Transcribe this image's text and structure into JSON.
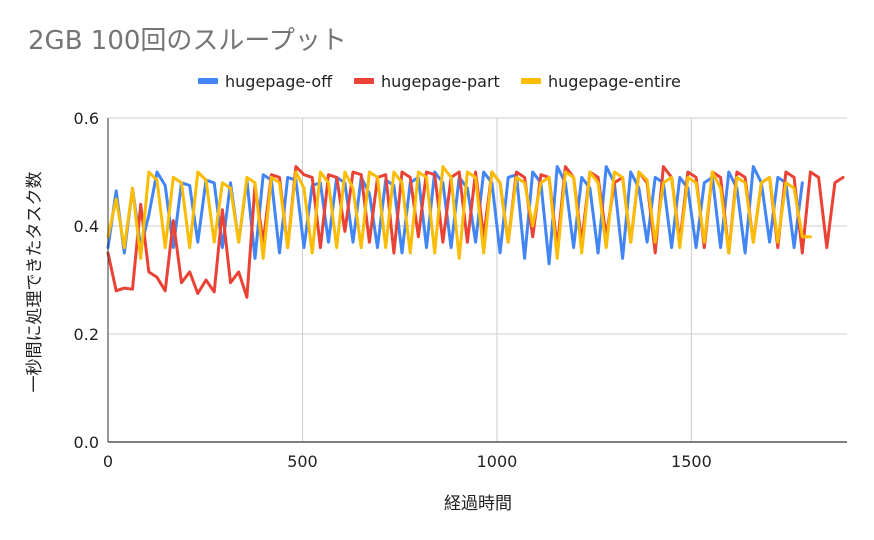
{
  "chart_data": {
    "type": "line",
    "title": "2GB 100回のスループット",
    "xlabel": "経過時間",
    "ylabel": "一秒間に処理できたタスク数",
    "xlim": [
      0,
      1900
    ],
    "ylim": [
      0,
      0.6
    ],
    "xticks": [
      "0",
      "500",
      "1000",
      "1500"
    ],
    "xtick_values": [
      0,
      500,
      1000,
      1500
    ],
    "yticks": [
      "0.0",
      "0.2",
      "0.4",
      "0.6"
    ],
    "ytick_values": [
      0,
      0.2,
      0.4,
      0.6
    ],
    "grid": true,
    "legend_position": "top",
    "series": [
      {
        "name": "hugepage-off",
        "color": "#4285f4",
        "x": [
          0,
          21,
          42,
          63,
          84,
          105,
          126,
          147,
          168,
          189,
          210,
          231,
          252,
          273,
          294,
          315,
          336,
          357,
          378,
          399,
          420,
          441,
          462,
          483,
          504,
          525,
          546,
          567,
          588,
          609,
          630,
          651,
          672,
          693,
          714,
          735,
          756,
          777,
          798,
          819,
          840,
          861,
          882,
          903,
          924,
          945,
          966,
          987,
          1008,
          1029,
          1050,
          1071,
          1092,
          1113,
          1134,
          1155,
          1176,
          1197,
          1218,
          1239,
          1260,
          1281,
          1302,
          1323,
          1344,
          1365,
          1386,
          1407,
          1428,
          1449,
          1470,
          1491,
          1512,
          1533,
          1554,
          1575,
          1596,
          1617,
          1638,
          1659,
          1680,
          1701,
          1722,
          1743,
          1764,
          1785
        ],
        "y": [
          0.36,
          0.465,
          0.35,
          0.47,
          0.36,
          0.42,
          0.5,
          0.475,
          0.36,
          0.48,
          0.475,
          0.37,
          0.485,
          0.48,
          0.36,
          0.48,
          0.37,
          0.485,
          0.34,
          0.495,
          0.485,
          0.35,
          0.49,
          0.485,
          0.36,
          0.475,
          0.48,
          0.37,
          0.49,
          0.48,
          0.37,
          0.49,
          0.46,
          0.36,
          0.485,
          0.475,
          0.35,
          0.48,
          0.49,
          0.36,
          0.5,
          0.48,
          0.36,
          0.49,
          0.47,
          0.37,
          0.5,
          0.48,
          0.35,
          0.49,
          0.495,
          0.34,
          0.5,
          0.48,
          0.33,
          0.51,
          0.48,
          0.36,
          0.49,
          0.47,
          0.35,
          0.51,
          0.48,
          0.34,
          0.5,
          0.47,
          0.37,
          0.49,
          0.48,
          0.36,
          0.49,
          0.47,
          0.36,
          0.48,
          0.49,
          0.36,
          0.5,
          0.47,
          0.35,
          0.51,
          0.48,
          0.37,
          0.49,
          0.48,
          0.36,
          0.48
        ]
      },
      {
        "name": "hugepage-part",
        "color": "#ea4335",
        "x": [
          0,
          21,
          42,
          63,
          84,
          105,
          126,
          147,
          168,
          189,
          210,
          231,
          252,
          273,
          294,
          315,
          336,
          357,
          378,
          399,
          420,
          441,
          462,
          483,
          504,
          525,
          546,
          567,
          588,
          609,
          630,
          651,
          672,
          693,
          714,
          735,
          756,
          777,
          798,
          819,
          840,
          861,
          882,
          903,
          924,
          945,
          966,
          987,
          1008,
          1029,
          1050,
          1071,
          1092,
          1113,
          1134,
          1155,
          1176,
          1197,
          1218,
          1239,
          1260,
          1281,
          1302,
          1323,
          1344,
          1365,
          1386,
          1407,
          1428,
          1449,
          1470,
          1491,
          1512,
          1533,
          1554,
          1575,
          1596,
          1617,
          1638,
          1659,
          1680,
          1701,
          1722,
          1743,
          1764,
          1785,
          1806,
          1827,
          1848,
          1869,
          1890
        ],
        "y": [
          0.35,
          0.28,
          0.285,
          0.283,
          0.44,
          0.315,
          0.305,
          0.28,
          0.41,
          0.295,
          0.315,
          0.275,
          0.3,
          0.278,
          0.43,
          0.295,
          0.315,
          0.268,
          0.475,
          0.37,
          0.495,
          0.49,
          0.36,
          0.51,
          0.495,
          0.49,
          0.36,
          0.495,
          0.49,
          0.39,
          0.5,
          0.495,
          0.37,
          0.49,
          0.495,
          0.35,
          0.5,
          0.49,
          0.38,
          0.5,
          0.495,
          0.37,
          0.49,
          0.5,
          0.37,
          0.5,
          0.38,
          0.5,
          0.48,
          0.37,
          0.5,
          0.49,
          0.38,
          0.495,
          0.49,
          0.36,
          0.51,
          0.49,
          0.37,
          0.5,
          0.49,
          0.38,
          0.48,
          0.49,
          0.37,
          0.5,
          0.48,
          0.35,
          0.51,
          0.49,
          0.37,
          0.5,
          0.49,
          0.36,
          0.5,
          0.49,
          0.35,
          0.5,
          0.49,
          0.37,
          0.48,
          0.49,
          0.36,
          0.5,
          0.49,
          0.35,
          0.5,
          0.49,
          0.36,
          0.48,
          0.49
        ]
      },
      {
        "name": "hugepage-entire",
        "color": "#fbbc04",
        "x": [
          0,
          21,
          42,
          63,
          84,
          105,
          126,
          147,
          168,
          189,
          210,
          231,
          252,
          273,
          294,
          315,
          336,
          357,
          378,
          399,
          420,
          441,
          462,
          483,
          504,
          525,
          546,
          567,
          588,
          609,
          630,
          651,
          672,
          693,
          714,
          735,
          756,
          777,
          798,
          819,
          840,
          861,
          882,
          903,
          924,
          945,
          966,
          987,
          1008,
          1029,
          1050,
          1071,
          1092,
          1113,
          1134,
          1155,
          1176,
          1197,
          1218,
          1239,
          1260,
          1281,
          1302,
          1323,
          1344,
          1365,
          1386,
          1407,
          1428,
          1449,
          1470,
          1491,
          1512,
          1533,
          1554,
          1575,
          1596,
          1617,
          1638,
          1659,
          1680,
          1701,
          1722,
          1743,
          1764,
          1785,
          1806
        ],
        "y": [
          0.38,
          0.45,
          0.36,
          0.47,
          0.34,
          0.5,
          0.485,
          0.36,
          0.49,
          0.48,
          0.36,
          0.5,
          0.485,
          0.37,
          0.48,
          0.47,
          0.37,
          0.49,
          0.48,
          0.34,
          0.49,
          0.48,
          0.36,
          0.5,
          0.47,
          0.35,
          0.5,
          0.48,
          0.36,
          0.5,
          0.47,
          0.36,
          0.5,
          0.49,
          0.36,
          0.5,
          0.48,
          0.35,
          0.5,
          0.49,
          0.35,
          0.51,
          0.49,
          0.34,
          0.5,
          0.49,
          0.35,
          0.5,
          0.48,
          0.37,
          0.49,
          0.48,
          0.4,
          0.48,
          0.49,
          0.34,
          0.5,
          0.49,
          0.35,
          0.5,
          0.48,
          0.36,
          0.5,
          0.49,
          0.37,
          0.5,
          0.485,
          0.37,
          0.48,
          0.49,
          0.36,
          0.49,
          0.48,
          0.37,
          0.5,
          0.47,
          0.35,
          0.49,
          0.48,
          0.37,
          0.48,
          0.49,
          0.37,
          0.48,
          0.47,
          0.38,
          0.38
        ]
      }
    ]
  }
}
